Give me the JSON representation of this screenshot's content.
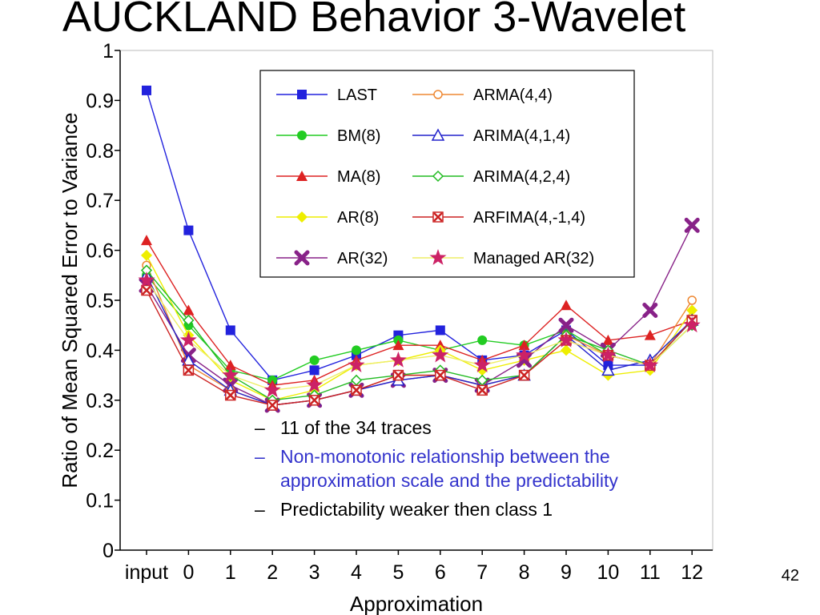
{
  "slide": {
    "title": "AUCKLAND Behavior 3-Wavelet",
    "page_number": "42",
    "bullets": [
      {
        "text": "11 of the 34 traces",
        "color": "#000000"
      },
      {
        "text": "Non-monotonic relationship between the approximation scale and the predictability",
        "color": "#3333cc"
      },
      {
        "text": "Predictability weaker then class 1",
        "color": "#000000"
      }
    ]
  },
  "chart_data": {
    "type": "line",
    "title": "",
    "xlabel": "Approximation",
    "ylabel": "Ratio of Mean Squared Error to Variance",
    "categories": [
      "input",
      "0",
      "1",
      "2",
      "3",
      "4",
      "5",
      "6",
      "7",
      "8",
      "9",
      "10",
      "11",
      "12"
    ],
    "ylim": [
      0,
      1
    ],
    "yticks": [
      "0",
      "0.1",
      "0.2",
      "0.3",
      "0.4",
      "0.5",
      "0.6",
      "0.7",
      "0.8",
      "0.9",
      "1"
    ],
    "legend_position": "top-right",
    "series": [
      {
        "name": "LAST",
        "color": "#2222dd",
        "marker": "square",
        "values": [
          0.92,
          0.64,
          0.44,
          0.34,
          0.36,
          0.39,
          0.43,
          0.44,
          0.38,
          0.39,
          0.44,
          0.37,
          0.37,
          0.46
        ]
      },
      {
        "name": "BM(8)",
        "color": "#22cc22",
        "marker": "circle",
        "values": [
          0.55,
          0.45,
          0.36,
          0.34,
          0.38,
          0.4,
          0.42,
          0.4,
          0.42,
          0.41,
          0.44,
          0.39,
          0.37,
          0.46
        ]
      },
      {
        "name": "MA(8)",
        "color": "#dd2222",
        "marker": "triangle",
        "values": [
          0.62,
          0.48,
          0.37,
          0.33,
          0.34,
          0.38,
          0.41,
          0.41,
          0.38,
          0.41,
          0.49,
          0.42,
          0.43,
          0.46
        ]
      },
      {
        "name": "AR(8)",
        "color": "#eeee00",
        "marker": "diamond-filled",
        "values": [
          0.59,
          0.43,
          0.34,
          0.3,
          0.32,
          0.37,
          0.38,
          0.4,
          0.36,
          0.38,
          0.4,
          0.35,
          0.36,
          0.48
        ]
      },
      {
        "name": "AR(32)",
        "color": "#882288",
        "marker": "x",
        "values": [
          0.53,
          0.39,
          0.33,
          0.29,
          0.3,
          0.32,
          0.34,
          0.35,
          0.33,
          0.38,
          0.45,
          0.4,
          0.48,
          0.65
        ]
      },
      {
        "name": "ARMA(4,4)",
        "color": "#ee8833",
        "marker": "circle-open",
        "values": [
          0.57,
          0.37,
          0.32,
          0.29,
          0.3,
          0.32,
          0.35,
          0.35,
          0.33,
          0.35,
          0.43,
          0.39,
          0.37,
          0.5
        ]
      },
      {
        "name": "ARIMA(4,1,4)",
        "color": "#2222cc",
        "marker": "triangle-open",
        "values": [
          0.55,
          0.38,
          0.32,
          0.29,
          0.3,
          0.32,
          0.34,
          0.35,
          0.33,
          0.35,
          0.43,
          0.36,
          0.38,
          0.46
        ]
      },
      {
        "name": "ARIMA(4,2,4)",
        "color": "#22bb22",
        "marker": "diamond-open",
        "values": [
          0.56,
          0.46,
          0.35,
          0.3,
          0.31,
          0.34,
          0.35,
          0.36,
          0.34,
          0.35,
          0.43,
          0.4,
          0.37,
          0.45
        ]
      },
      {
        "name": "ARFIMA(4,-1,4)",
        "color": "#cc2222",
        "marker": "x-box",
        "values": [
          0.52,
          0.36,
          0.31,
          0.29,
          0.3,
          0.32,
          0.35,
          0.35,
          0.32,
          0.35,
          0.42,
          0.39,
          0.37,
          0.46
        ]
      },
      {
        "name": "Managed AR(32)",
        "color": "#cc2266",
        "line_color": "#eeee66",
        "marker": "star",
        "values": [
          0.54,
          0.42,
          0.35,
          0.32,
          0.33,
          0.37,
          0.38,
          0.39,
          0.37,
          0.39,
          0.42,
          0.39,
          0.37,
          0.45
        ]
      }
    ]
  }
}
